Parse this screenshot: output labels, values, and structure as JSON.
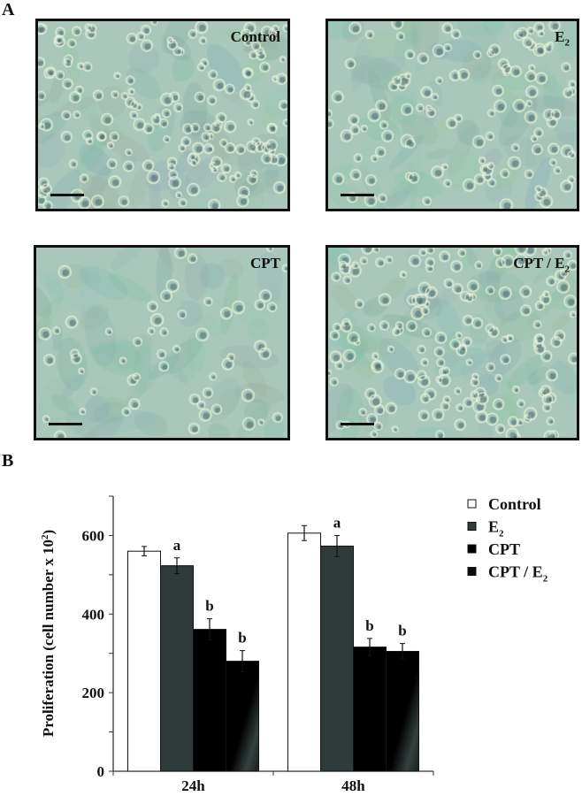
{
  "panel_a": {
    "label": "A",
    "images": [
      {
        "condition": "Control",
        "sub": "",
        "density": "high"
      },
      {
        "condition": "E",
        "sub": "2",
        "density": "medium"
      },
      {
        "condition": "CPT",
        "sub": "",
        "density": "low"
      },
      {
        "condition": "CPT / E",
        "sub": "2",
        "density": "high"
      }
    ]
  },
  "panel_b": {
    "label": "B"
  },
  "chart_data": {
    "type": "bar",
    "categories": [
      "24h",
      "48h"
    ],
    "ylabel": "Proliferation (cell number x 10",
    "ylabel_sup": "2",
    "ylabel_close": ")",
    "ylim": [
      0,
      700
    ],
    "yticks": [
      0,
      200,
      400,
      600
    ],
    "grid": false,
    "legend_position": "top-right",
    "series": [
      {
        "name": "Control",
        "name_sub": "",
        "color": "#ffffff",
        "values": [
          560,
          606
        ],
        "errors": [
          12,
          19
        ],
        "annotations": [
          "",
          ""
        ]
      },
      {
        "name": "E",
        "name_sub": "2",
        "color": "#2f3a3a",
        "values": [
          523,
          573
        ],
        "errors": [
          20,
          27
        ],
        "annotations": [
          "a",
          "a"
        ]
      },
      {
        "name": "CPT",
        "name_sub": "",
        "color": "#000000",
        "values": [
          361,
          316
        ],
        "errors": [
          27,
          22
        ],
        "annotations": [
          "b",
          "b"
        ]
      },
      {
        "name": "CPT / E",
        "name_sub": "2",
        "color": "#0a0d0d",
        "values": [
          280,
          305
        ],
        "errors": [
          27,
          20
        ],
        "annotations": [
          "b",
          "b"
        ]
      }
    ]
  }
}
